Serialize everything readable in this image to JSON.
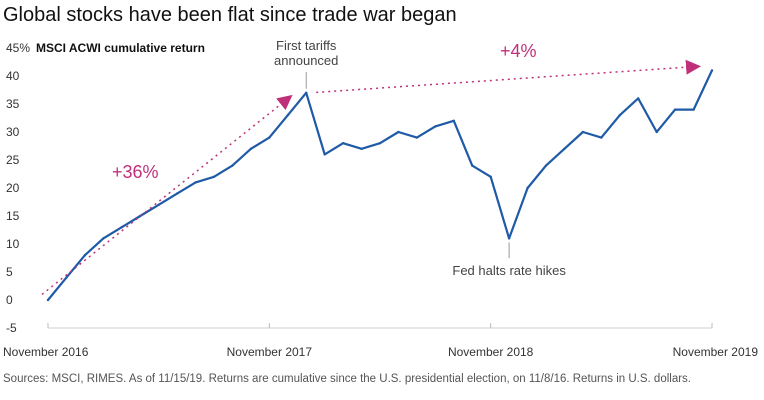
{
  "chart_data": {
    "type": "line",
    "title": "Global stocks have been flat since trade war began",
    "ylabel": "MSCI ACWI cumulative return",
    "y_top_tick_label": "45%",
    "ylim": [
      -5,
      45
    ],
    "y_ticks": [
      -5,
      0,
      5,
      10,
      15,
      20,
      25,
      30,
      35,
      40,
      45
    ],
    "x_tick_labels": [
      "November 2016",
      "November 2017",
      "November 2018",
      "November 2019"
    ],
    "xlim": [
      "2016-11",
      "2019-11"
    ],
    "grid": false,
    "series": [
      {
        "color": "#1f5aa6",
        "x": [
          "2016-11",
          "2016-12",
          "2017-01",
          "2017-02",
          "2017-03",
          "2017-04",
          "2017-05",
          "2017-06",
          "2017-07",
          "2017-08",
          "2017-09",
          "2017-10",
          "2017-11",
          "2017-12",
          "2018-01",
          "2018-02",
          "2018-03",
          "2018-04",
          "2018-05",
          "2018-06",
          "2018-07",
          "2018-08",
          "2018-09",
          "2018-10",
          "2018-11",
          "2018-12",
          "2019-01",
          "2019-02",
          "2019-03",
          "2019-04",
          "2019-05",
          "2019-06",
          "2019-07",
          "2019-08",
          "2019-09",
          "2019-10",
          "2019-11"
        ],
        "values": [
          0,
          4,
          8,
          11,
          13,
          15,
          17,
          19,
          21,
          22,
          24,
          27,
          29,
          33,
          37,
          26,
          28,
          27,
          28,
          30,
          29,
          31,
          32,
          24,
          22,
          11,
          20,
          24,
          27,
          30,
          29,
          33,
          36,
          30,
          34,
          34,
          41
        ]
      }
    ],
    "annotations": [
      {
        "text_lines": [
          "First tariffs",
          "announced"
        ],
        "x": "2018-01",
        "y": 37
      },
      {
        "text": "Fed halts rate hikes",
        "x": "2018-12",
        "y": 11
      },
      {
        "text": "+36%",
        "from": [
          "2016-11",
          1
        ],
        "to": [
          "2018-01",
          37
        ],
        "color": "#c0307a"
      },
      {
        "text": "+4%",
        "from": [
          "2018-01",
          38.5
        ],
        "to": [
          "2019-11",
          41
        ],
        "color": "#c0307a"
      }
    ]
  },
  "footer": {
    "sources": "Sources: MSCI, RIMES. As of 11/15/19. Returns are cumulative since the U.S. presidential election, on 11/8/16. Returns in U.S. dollars."
  }
}
